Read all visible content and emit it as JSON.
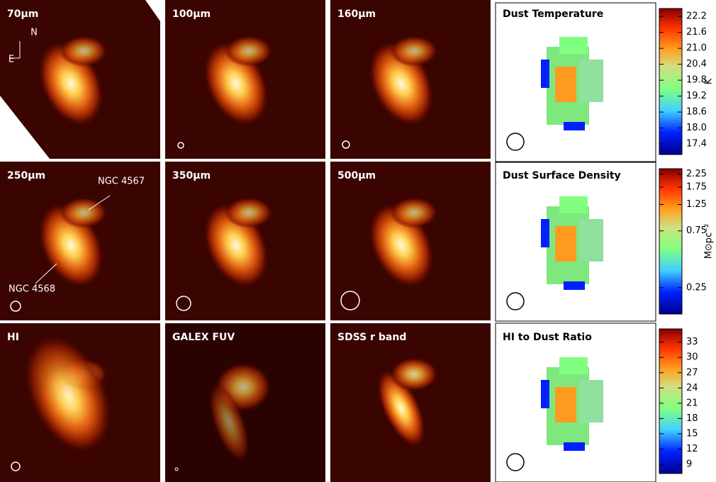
{
  "panels": [
    {
      "label": "70μm"
    },
    {
      "label": "100μm"
    },
    {
      "label": "160μm"
    },
    {
      "label": "Dust Temperature"
    },
    {
      "label": "250μm"
    },
    {
      "label": "350μm"
    },
    {
      "label": "500μm"
    },
    {
      "label": "Dust Surface Density"
    },
    {
      "label": "HI"
    },
    {
      "label": "GALEX FUV"
    },
    {
      "label": "SDSS r band"
    },
    {
      "label": "HI to Dust Ratio"
    }
  ],
  "annotations": {
    "north": "N",
    "east": "E",
    "ngc4567": "NGC 4567",
    "ngc4568": "NGC 4568"
  },
  "colorbars": [
    {
      "label": "K",
      "ylim": [
        17.0,
        22.5
      ],
      "ticks": [
        17.4,
        {
          "value": 18,
          "label": "18.0"
        },
        18.6,
        19.2,
        19.8,
        20.4,
        {
          "value": 21,
          "label": "21.0"
        },
        21.6,
        22.2
      ]
    },
    {
      "label": "M⊙pc⁻²",
      "ylim": [
        0.15,
        2.5
      ],
      "log": true,
      "ticks": [
        0.25,
        0.75,
        1.25,
        1.75,
        2.25
      ]
    },
    {
      "label": "",
      "ylim": [
        7.2,
        35.6
      ],
      "ticks": [
        9,
        12,
        15,
        18,
        21,
        24,
        27,
        30,
        33
      ]
    }
  ]
}
